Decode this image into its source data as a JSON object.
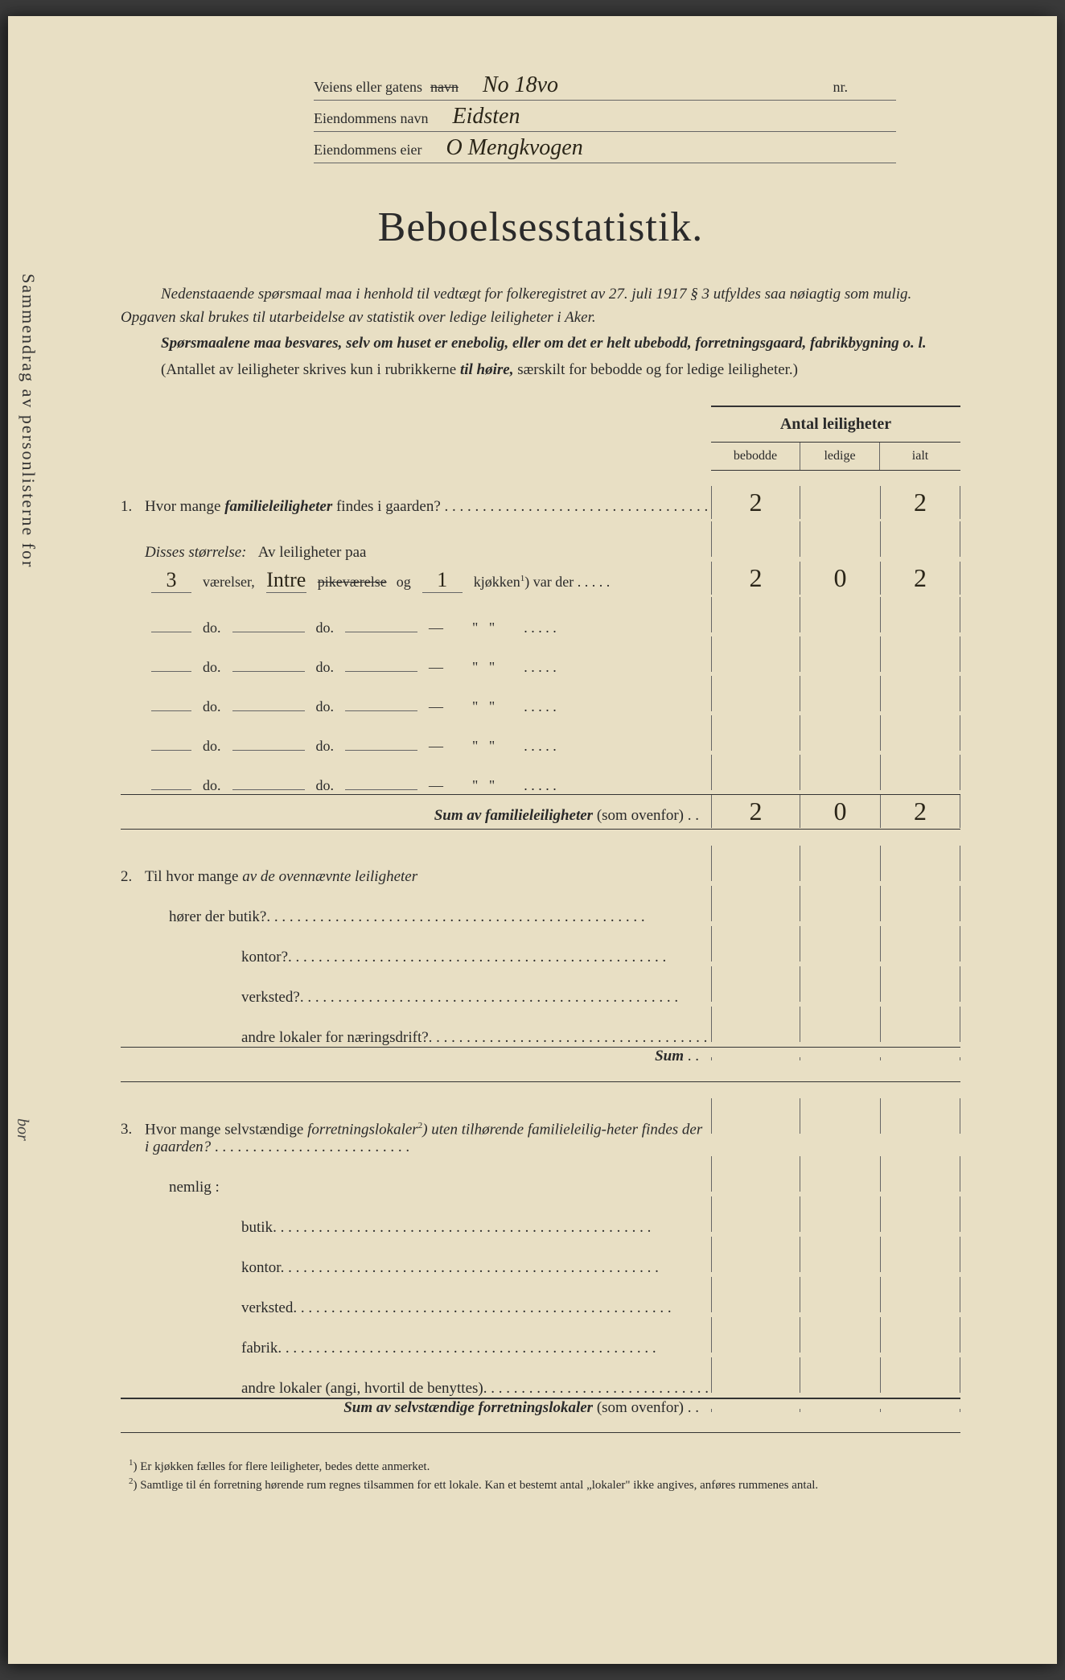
{
  "side_text": "Sammendrag av personlisterne for",
  "side_text_2": "bor",
  "header": {
    "street_label": "Veiens eller gatens",
    "street_struck": "navn",
    "street_value": "No 18vo",
    "nr_label": "nr.",
    "property_name_label": "Eiendommens navn",
    "property_name_value": "Eidsten",
    "owner_label": "Eiendommens eier",
    "owner_value": "O Mengkvogen"
  },
  "title": "Beboelsesstatistik.",
  "intro": {
    "p1": "Nedenstaaende spørsmaal maa i henhold til vedtægt for folkeregistret av 27. juli 1917 § 3 utfyldes saa nøiagtig som mulig. Opgaven skal brukes til utarbeidelse av statistik over ledige leiligheter i Aker.",
    "p2_a": "Spørsmaalene maa besvares, selv om huset er enebolig, eller om det er helt ubebodd, forretningsgaard, fabrikbygning o. l.",
    "p3_a": "(Antallet av leiligheter skrives kun i rubrikkerne ",
    "p3_b": "til høire,",
    "p3_c": " særskilt for bebodde og for ledige leiligheter.)"
  },
  "table_header": {
    "title": "Antal leiligheter",
    "col_bebodde": "bebodde",
    "col_ledige": "ledige",
    "col_ialt": "ialt"
  },
  "q1": {
    "num": "1.",
    "text_a": "Hvor mange ",
    "text_b": "familieleiligheter",
    "text_c": " findes i gaarden?",
    "bebodde": "2",
    "ledige": "",
    "ialt": "2",
    "disses_label": "Disses størrelse:",
    "av_label": "Av leiligheter paa",
    "rooms": [
      {
        "vaer": "3",
        "entre": "Intre",
        "pike_struck": "pikeværelse",
        "og": "og",
        "kjok": "1",
        "kjokken_label": "kjøkken",
        "var_der": ") var der",
        "b": "2",
        "l": "0",
        "i": "2"
      }
    ],
    "do_label": "do.",
    "dash": "—",
    "quote": "\"",
    "sum_label_a": "Sum av ",
    "sum_label_b": "familieleiligheter",
    "sum_label_c": " (som ovenfor)",
    "sum_b": "2",
    "sum_l": "0",
    "sum_i": "2"
  },
  "q2": {
    "num": "2.",
    "text_a": "Til hvor mange ",
    "text_b": "av de ovennævnte leiligheter",
    "items": [
      "hører der butik?",
      "kontor?",
      "verksted?",
      "andre lokaler for næringsdrift?"
    ],
    "sum_label": "Sum"
  },
  "q3": {
    "num": "3.",
    "text_a": "Hvor mange selvstændige ",
    "text_b": "forretningslokaler",
    "text_c": ") uten tilhørende familieleilig-heter findes der i gaarden?",
    "nemlig": "nemlig :",
    "items": [
      "butik",
      "kontor",
      "verksted",
      "fabrik",
      "andre lokaler (angi, hvortil de benyttes)"
    ],
    "sum_label_a": "Sum av ",
    "sum_label_b": "selvstændige forretningslokaler",
    "sum_label_c": " (som ovenfor)"
  },
  "footnotes": {
    "f1_sup": "1",
    "f1": ") Er kjøkken fælles for flere leiligheter, bedes dette anmerket.",
    "f2_sup": "2",
    "f2": ") Samtlige til én forretning hørende rum regnes tilsammen for ett lokale. Kan et bestemt antal „lokaler\" ikke angives, anføres rummenes antal."
  },
  "colors": {
    "paper": "#e8dfc4",
    "ink": "#2a2a2a",
    "handwriting": "#2a2518",
    "line": "#666666"
  }
}
